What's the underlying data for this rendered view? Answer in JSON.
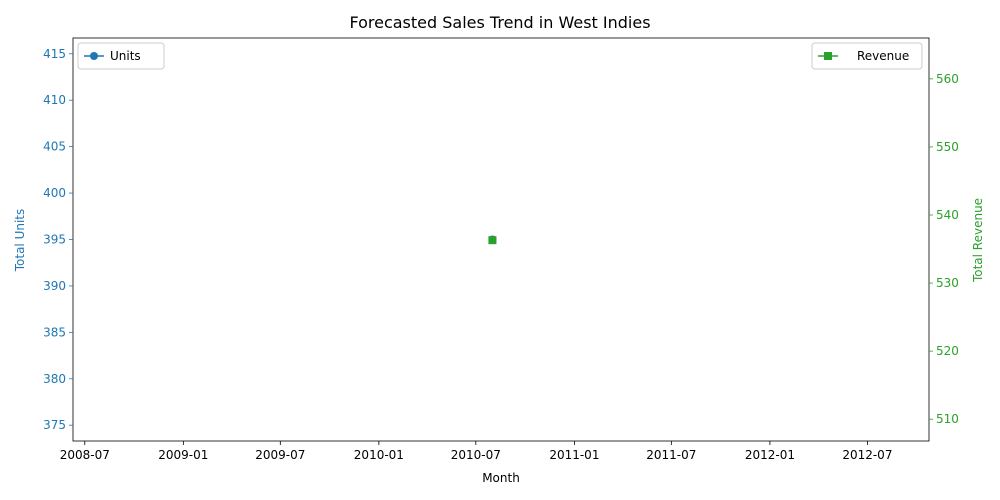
{
  "colors": {
    "units": "#1f77b4",
    "revenue": "#2ca02c",
    "axis": "#000000"
  },
  "chart_data": {
    "type": "line",
    "title": "Forecasted Sales Trend in West Indies",
    "xlabel": "Month",
    "ylabel_left": "Total Units",
    "ylabel_right": "Total Revenue",
    "x_ticks": [
      "2008-07",
      "2009-01",
      "2009-07",
      "2010-01",
      "2010-07",
      "2011-01",
      "2011-07",
      "2012-01",
      "2012-07"
    ],
    "y_left_ticks": [
      375,
      380,
      385,
      390,
      395,
      400,
      405,
      410,
      415
    ],
    "y_right_ticks": [
      510,
      520,
      530,
      540,
      550,
      560
    ],
    "xlim": [
      "2008-06-09",
      "2012-10-24"
    ],
    "ylim_left": [
      373.3,
      416.7
    ],
    "ylim_right": [
      506.8,
      566.0
    ],
    "grid": false,
    "legend_left_position": "upper-left",
    "legend_right_position": "upper-right",
    "series": [
      {
        "name": "Units",
        "axis": "left",
        "marker": "circle",
        "color": "#1f77b4",
        "points": [
          {
            "x": "2010-08-01",
            "y": 395
          }
        ]
      },
      {
        "name": "Revenue",
        "axis": "right",
        "marker": "square",
        "color": "#2ca02c",
        "points": [
          {
            "x": "2010-08-01",
            "y": 536.3
          }
        ]
      }
    ]
  }
}
